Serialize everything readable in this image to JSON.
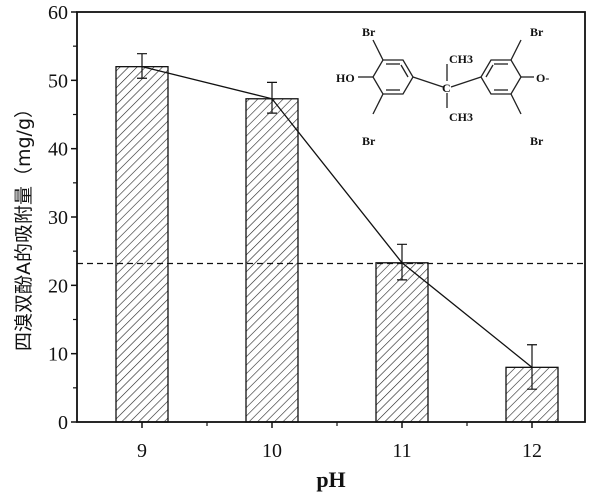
{
  "chart_data": {
    "type": "bar",
    "xlabel": "pH",
    "ylabel": "四溴双酚A的吸附量（mg/g）",
    "categories": [
      "9",
      "10",
      "11",
      "12"
    ],
    "values": [
      52.0,
      47.3,
      23.3,
      8.0
    ],
    "error_upper": [
      53.9,
      49.7,
      26.0,
      11.3
    ],
    "error_lower": [
      50.3,
      45.2,
      20.8,
      4.8
    ],
    "ylim": [
      0,
      60
    ],
    "yticks": [
      "0",
      "10",
      "20",
      "30",
      "40",
      "50",
      "60"
    ],
    "reference_line": 23.2,
    "connecting_line": true,
    "bar_fill": "diagonal hatch",
    "grid": false,
    "inset": {
      "labels": [
        "Br",
        "Br",
        "HO",
        "Br",
        "Br",
        "CH3",
        "CH3",
        "C",
        "O-"
      ]
    }
  }
}
